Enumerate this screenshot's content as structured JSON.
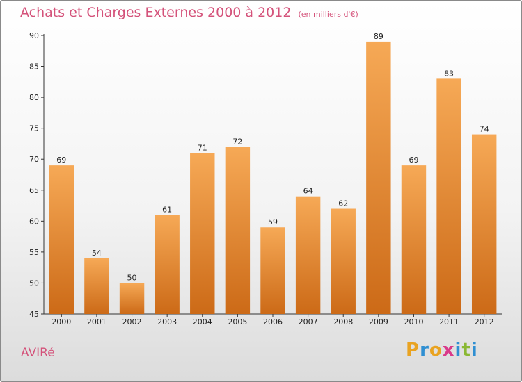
{
  "header": {
    "title": "Achats et Charges Externes 2000 à 2012",
    "unit": "(en milliers d'€)"
  },
  "footer": {
    "city": "AVIRé",
    "logo_letters": [
      "P",
      "r",
      "o",
      "x",
      "i",
      "t",
      "i"
    ],
    "logo_colors": [
      "#e9a321",
      "#2f8fd2",
      "#e9a321",
      "#d93a8a",
      "#2f8fd2",
      "#8ab833",
      "#2f8fd2"
    ]
  },
  "colors": {
    "title": "#d4527a",
    "bar_top": "#f6a956",
    "bar_bottom": "#cc6a17"
  },
  "chart_data": {
    "type": "bar",
    "categories": [
      "2000",
      "2001",
      "2002",
      "2003",
      "2004",
      "2005",
      "2006",
      "2007",
      "2008",
      "2009",
      "2010",
      "2011",
      "2012"
    ],
    "values": [
      69,
      54,
      50,
      61,
      71,
      72,
      59,
      64,
      62,
      89,
      69,
      83,
      74
    ],
    "ylim": [
      45,
      90
    ],
    "yticks": [
      45,
      50,
      55,
      60,
      65,
      70,
      75,
      80,
      85,
      90
    ],
    "grid": false,
    "data_labels": true
  }
}
